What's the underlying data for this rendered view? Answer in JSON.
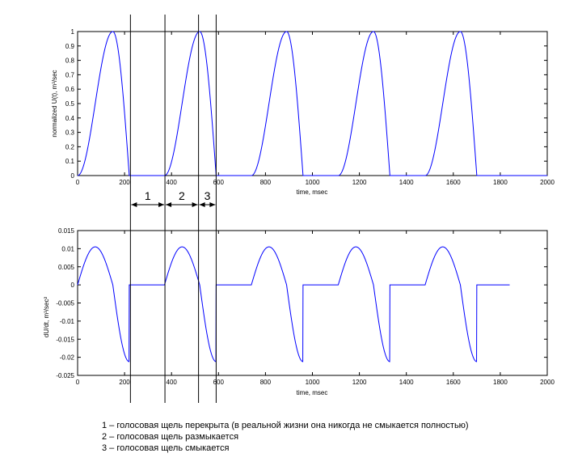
{
  "chart_data": [
    {
      "type": "line",
      "xlabel": "time, msec",
      "ylabel": "normalized U(t), m³/sec",
      "xlim": [
        0,
        2000
      ],
      "ylim": [
        0,
        1
      ],
      "xticks": [
        0,
        200,
        400,
        600,
        800,
        1000,
        1200,
        1400,
        1600,
        1800,
        2000
      ],
      "yticks": [
        0,
        0.1,
        0.2,
        0.3,
        0.4,
        0.5,
        0.6,
        0.7,
        0.8,
        0.9,
        1
      ],
      "ytick_labels": [
        "0",
        "0.1",
        "0.2",
        "0.3",
        "0.4",
        "0.5",
        "0.6",
        "0.7",
        "0.8",
        "0.9",
        "1"
      ],
      "grid": false,
      "line_color": "#0000ff",
      "pulses": [
        {
          "open_ms": 0,
          "peak_ms": 150,
          "close_ms": 220
        },
        {
          "open_ms": 370,
          "peak_ms": 520,
          "close_ms": 590
        },
        {
          "open_ms": 740,
          "peak_ms": 890,
          "close_ms": 960
        },
        {
          "open_ms": 1110,
          "peak_ms": 1260,
          "close_ms": 1330
        },
        {
          "open_ms": 1480,
          "peak_ms": 1630,
          "close_ms": 1700
        }
      ],
      "peak_value": 1
    },
    {
      "type": "line",
      "xlabel": "time, msec",
      "ylabel": "dU/dt, m³/sec²",
      "xlim": [
        0,
        2000
      ],
      "ylim": [
        -0.025,
        0.015
      ],
      "xticks": [
        0,
        200,
        400,
        600,
        800,
        1000,
        1200,
        1400,
        1600,
        1800,
        2000
      ],
      "yticks": [
        -0.025,
        -0.02,
        -0.015,
        -0.01,
        -0.005,
        0,
        0.005,
        0.01,
        0.015
      ],
      "ytick_labels": [
        "-0.025",
        "-0.02",
        "-0.015",
        "-0.01",
        "-0.005",
        "0",
        "0.005",
        "0.01",
        "0.015"
      ],
      "grid": false,
      "line_color": "#0000ff",
      "x_end_ms": 1840,
      "max_value": 0.0105,
      "min_value": -0.0212
    }
  ],
  "markers": {
    "lines_ms": [
      225,
      372,
      515,
      590
    ],
    "segments": [
      {
        "label": "1",
        "from_ms": 225,
        "to_ms": 372
      },
      {
        "label": "2",
        "from_ms": 372,
        "to_ms": 515
      },
      {
        "label": "3",
        "from_ms": 515,
        "to_ms": 590
      }
    ]
  },
  "legend": [
    "1 – голосовая щель перекрыта (в реальной жизни она никогда не смыкается полностью)",
    "2 – голосовая щель размыкается",
    "3 – голосовая щель смыкается"
  ]
}
